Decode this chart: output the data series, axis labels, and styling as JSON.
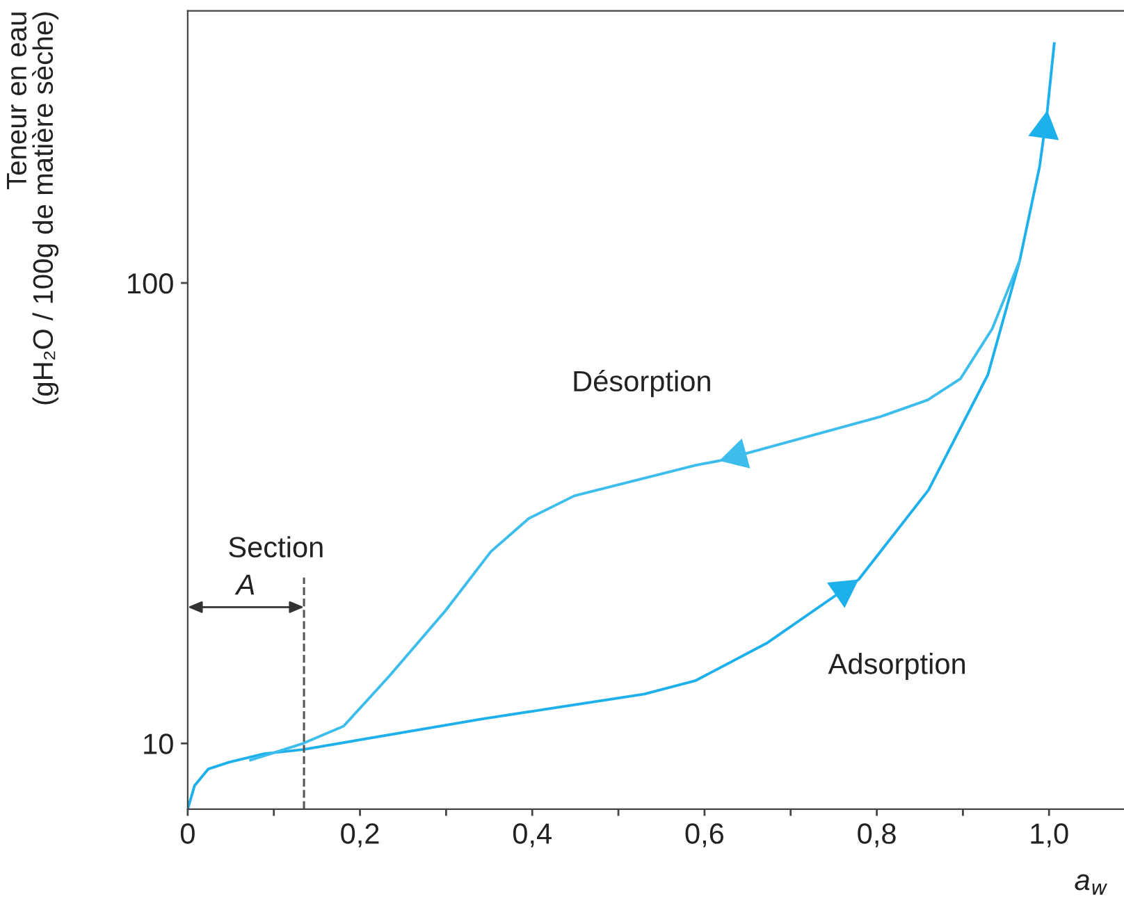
{
  "chart_data": {
    "type": "line",
    "xlabel": "a$_{w}$",
    "ylabel": "Teneur en eau\n(gH₂O / 100g de matière sèche)",
    "log": "y",
    "xlim": [
      0,
      1.087
    ],
    "ylim": [
      7.2,
      390
    ],
    "xticks": [
      0,
      {
        "value": 0.1,
        "label": null
      },
      {
        "value": 0.2,
        "label": "0,2"
      },
      {
        "value": 0.3,
        "label": null
      },
      {
        "value": 0.4,
        "label": "0,4"
      },
      {
        "value": 0.5,
        "label": null
      },
      {
        "value": 0.6,
        "label": "0,6"
      },
      {
        "value": 0.7,
        "label": null
      },
      {
        "value": 0.8,
        "label": "0,8"
      },
      {
        "value": 0.9,
        "label": null
      },
      {
        "value": 1.0,
        "label": "1,0"
      }
    ],
    "yticks": [
      10,
      100
    ],
    "grid": false,
    "marker": "none",
    "line_style": "solid",
    "series": [
      {
        "name": "Adsorption",
        "color": "#1eb0ea",
        "x": [
          0,
          0.008,
          0.024,
          0.048,
          0.089,
          0.134,
          0.342,
          0.53,
          0.59,
          0.672,
          0.779,
          0.86,
          0.929,
          0.966,
          0.989,
          0.998,
          1.006
        ],
        "values": [
          7.2,
          8.1,
          8.8,
          9.1,
          9.5,
          9.7,
          11.3,
          12.8,
          13.7,
          16.5,
          22.7,
          35.5,
          63.2,
          112,
          179,
          237,
          331
        ]
      },
      {
        "name": "Désorption",
        "color": "#3dbdec",
        "x": [
          0.073,
          0.134,
          0.181,
          0.234,
          0.299,
          0.352,
          0.396,
          0.449,
          0.59,
          0.617,
          0.805,
          0.859,
          0.897,
          0.934,
          0.966
        ],
        "values": [
          9.2,
          10.0,
          10.9,
          14.0,
          19.4,
          26.1,
          30.8,
          34.5,
          40.2,
          41.1,
          51.3,
          55.7,
          61.9,
          79.5,
          112
        ]
      }
    ],
    "ref_lines": [
      {
        "axis": "x",
        "value": 0.135,
        "label": "Section\nA",
        "line_style": "dashed",
        "color": "#555555"
      }
    ]
  }
}
